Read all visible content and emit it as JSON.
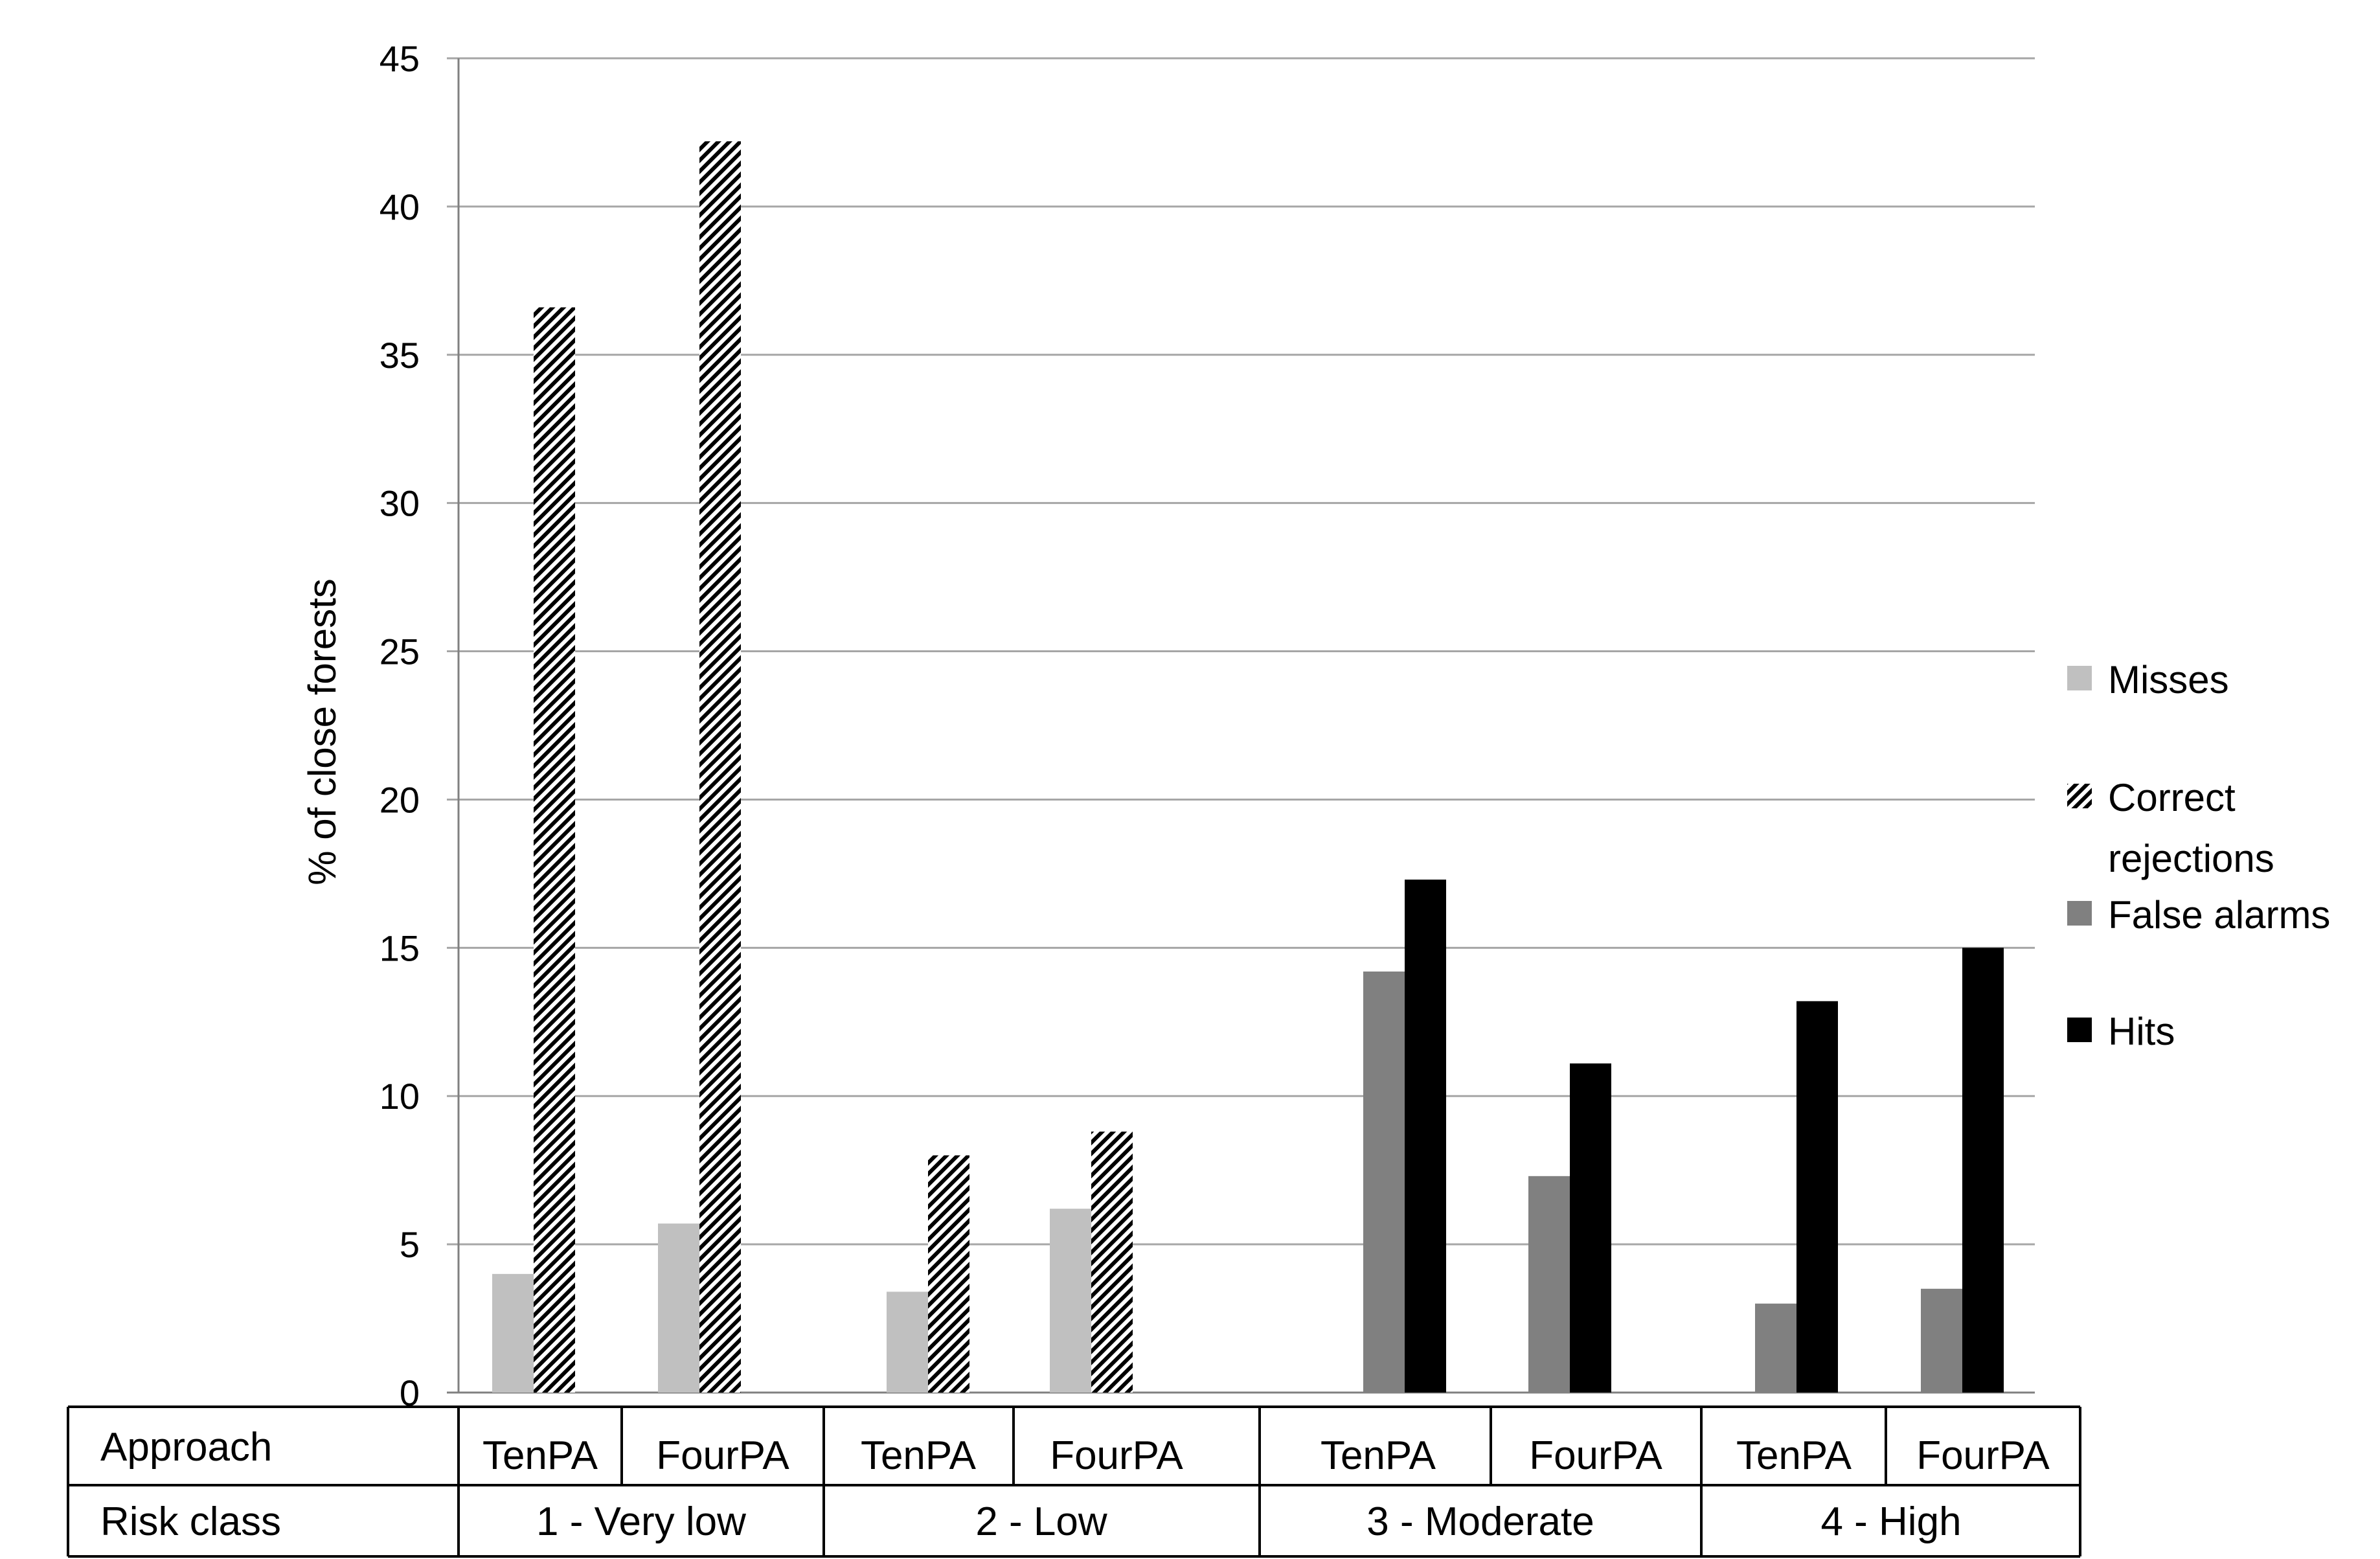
{
  "colors": {
    "misses": "#c0c0c0",
    "correct_rejections_pattern": "diagonal-hatch-black-white",
    "false_alarms": "#808080",
    "hits": "#000000",
    "grid": "#a6a6a6",
    "text": "#000000"
  },
  "chart_data": {
    "type": "bar",
    "title": "",
    "ylabel": "% of close forests",
    "ylim": [
      0,
      45
    ],
    "yticks": [
      0,
      5,
      10,
      15,
      20,
      25,
      30,
      35,
      40,
      45
    ],
    "grid": true,
    "legend_position": "right",
    "categories": [
      "TenPA | 1 - Very low",
      "FourPA | 1 - Very low",
      "TenPA | 2 - Low",
      "FourPA | 2 - Low",
      "TenPA | 3 - Moderate",
      "FourPA | 3 - Moderate",
      "TenPA | 4 - High",
      "FourPA | 4 - High"
    ],
    "series": [
      {
        "name": "Misses",
        "values": [
          4.0,
          5.7,
          3.4,
          6.2,
          null,
          null,
          null,
          null
        ]
      },
      {
        "name": "Correct rejections",
        "values": [
          36.6,
          42.2,
          8.0,
          8.8,
          null,
          null,
          null,
          null
        ]
      },
      {
        "name": "False alarms",
        "values": [
          null,
          null,
          null,
          null,
          14.2,
          7.3,
          3.0,
          3.5
        ]
      },
      {
        "name": "Hits",
        "values": [
          null,
          null,
          null,
          null,
          17.3,
          11.1,
          13.2,
          15.0
        ]
      }
    ],
    "table": {
      "row_labels": [
        "Approach",
        "Risk class"
      ],
      "approach": [
        "TenPA",
        "FourPA",
        "TenPA",
        "FourPA",
        "TenPA",
        "FourPA",
        "TenPA",
        "FourPA"
      ],
      "risk_classes": [
        "1 - Very low",
        "2 - Low",
        "3 - Moderate",
        "4 - High"
      ]
    }
  }
}
